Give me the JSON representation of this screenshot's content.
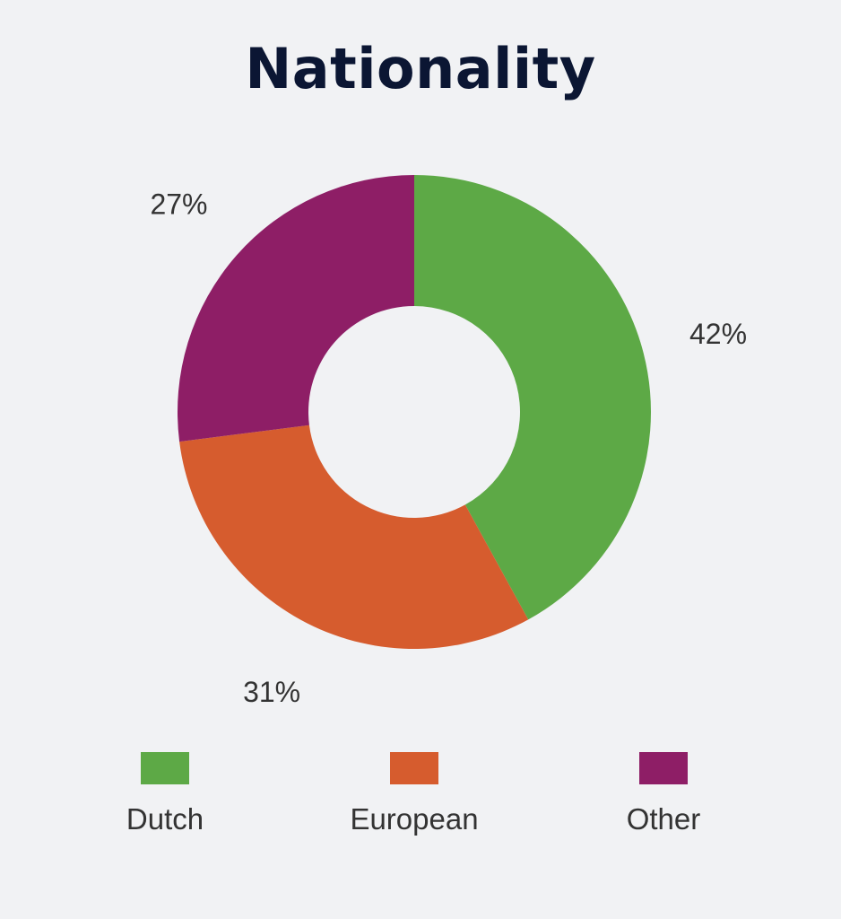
{
  "chart_data": {
    "type": "pie",
    "title": "Nationality",
    "categories": [
      "Dutch",
      "European",
      "Other"
    ],
    "values": [
      42,
      31,
      27
    ],
    "value_labels": [
      "42%",
      "31%",
      "27%"
    ],
    "colors": [
      "#5da946",
      "#d65c2e",
      "#8e1e66"
    ],
    "donut": true,
    "legend_position": "bottom"
  }
}
